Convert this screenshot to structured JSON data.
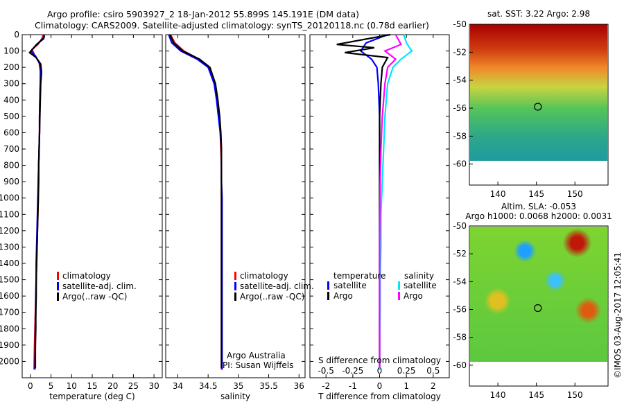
{
  "title_line1": "Argo profile: csiro 5903927_2 18-Jan-2012 55.899S 145.191E (DM data)",
  "title_line2": "Climatology: CARS2009. Satellite-adjusted climatology: synTS_20120118.nc (0.78d earlier)",
  "chart_data": [
    {
      "type": "line",
      "panel": "temperature",
      "xlabel": "temperature (deg C)",
      "xlim": [
        -2,
        32
      ],
      "xticks": [
        0,
        5,
        10,
        15,
        20,
        25,
        30
      ],
      "ylim": [
        2100,
        0
      ],
      "yticks": [
        0,
        100,
        200,
        300,
        400,
        500,
        600,
        700,
        800,
        900,
        1000,
        1100,
        1200,
        1300,
        1400,
        1500,
        1600,
        1700,
        1800,
        1900,
        2000
      ],
      "legend": [
        "climatology",
        "satellite-adj. clim.",
        "Argo(..raw -QC)"
      ],
      "series": [
        {
          "name": "climatology",
          "color": "#ff0000",
          "x": [
            3.1,
            2.9,
            1.8,
            0.4,
            0.9,
            2.1,
            2.4,
            2.4,
            2.3,
            2.2,
            2.2,
            2.1,
            2.0,
            1.9,
            1.9,
            1.8,
            1.7,
            1.6,
            1.5,
            1.4,
            1.3,
            1.2,
            1.1,
            1.0,
            0.9
          ],
          "y": [
            0,
            20,
            60,
            90,
            120,
            170,
            220,
            300,
            400,
            500,
            600,
            700,
            800,
            900,
            1000,
            1100,
            1200,
            1300,
            1400,
            1500,
            1600,
            1700,
            1800,
            1900,
            2050
          ]
        },
        {
          "name": "satellite-adj. clim.",
          "color": "#0000ff",
          "x": [
            3.3,
            3.2,
            1.6,
            0.1,
            1.2,
            2.3,
            2.5,
            2.4,
            2.3,
            2.2,
            2.2,
            2.1,
            2.0,
            1.9,
            1.8,
            1.7,
            1.6,
            1.5,
            1.4,
            1.4,
            1.3,
            1.3,
            1.2,
            1.2,
            1.1
          ],
          "y": [
            0,
            20,
            60,
            100,
            130,
            180,
            230,
            300,
            400,
            500,
            600,
            700,
            800,
            900,
            1000,
            1100,
            1200,
            1300,
            1400,
            1500,
            1600,
            1700,
            1800,
            1900,
            2050
          ]
        },
        {
          "name": "Argo(..raw -QC)",
          "color": "#000000",
          "x": [
            3.4,
            3.2,
            1.5,
            -0.2,
            1.4,
            2.5,
            2.7,
            2.5,
            2.4,
            2.3,
            2.2,
            2.1,
            2.0,
            2.0,
            1.9,
            1.8,
            1.7,
            1.6,
            1.5,
            1.4,
            1.4,
            1.3,
            1.3,
            1.2,
            1.2
          ],
          "y": [
            5,
            25,
            60,
            110,
            140,
            180,
            230,
            300,
            400,
            500,
            600,
            700,
            800,
            900,
            1000,
            1100,
            1200,
            1300,
            1400,
            1500,
            1600,
            1700,
            1800,
            1900,
            2040
          ]
        }
      ]
    },
    {
      "type": "line",
      "panel": "salinity",
      "xlabel": "salinity",
      "xlim": [
        33.8,
        36.1
      ],
      "xticks": [
        34,
        34.5,
        35,
        35.5,
        36
      ],
      "ylim": [
        2100,
        0
      ],
      "legend": [
        "climatology",
        "satellite-adj. clim.",
        "Argo(..raw -QC)"
      ],
      "annotation": [
        "Argo Australia",
        "PI: Susan Wijffels"
      ],
      "series": [
        {
          "name": "climatology",
          "color": "#ff0000",
          "x": [
            33.88,
            33.95,
            34.1,
            34.35,
            34.52,
            34.6,
            34.65,
            34.68,
            34.7,
            34.71,
            34.72,
            34.72,
            34.72,
            34.72,
            34.72,
            34.72,
            34.72,
            34.72,
            34.72,
            34.72,
            34.72
          ],
          "y": [
            0,
            50,
            100,
            150,
            200,
            300,
            400,
            500,
            600,
            700,
            800,
            900,
            1000,
            1100,
            1200,
            1300,
            1400,
            1500,
            1700,
            1900,
            2050
          ]
        },
        {
          "name": "satellite-adj. clim.",
          "color": "#0000ff",
          "x": [
            33.85,
            33.9,
            34.05,
            34.32,
            34.5,
            34.6,
            34.64,
            34.67,
            34.7,
            34.72,
            34.72,
            34.72,
            34.73,
            34.73,
            34.73,
            34.73,
            34.73,
            34.73,
            34.73,
            34.73,
            34.73
          ],
          "y": [
            0,
            50,
            100,
            150,
            200,
            300,
            400,
            500,
            600,
            700,
            800,
            900,
            1000,
            1100,
            1200,
            1300,
            1400,
            1500,
            1700,
            1900,
            2050
          ]
        },
        {
          "name": "Argo(..raw -QC)",
          "color": "#000000",
          "x": [
            33.87,
            33.93,
            34.08,
            34.36,
            34.53,
            34.62,
            34.66,
            34.69,
            34.71,
            34.72,
            34.72,
            34.72,
            34.72,
            34.72,
            34.72,
            34.72,
            34.72,
            34.72,
            34.72,
            34.72,
            34.72
          ],
          "y": [
            0,
            50,
            100,
            150,
            200,
            300,
            400,
            500,
            600,
            700,
            800,
            900,
            1000,
            1100,
            1200,
            1300,
            1400,
            1500,
            1700,
            1900,
            2040
          ]
        }
      ]
    },
    {
      "type": "line",
      "panel": "difference",
      "xlabel": "T difference from climatology",
      "xlabel_top": "S difference from climatology",
      "xlim": [
        -2.6,
        2.6
      ],
      "xticks": [
        -2,
        -1,
        0,
        1,
        2
      ],
      "xticks_top": [
        -0.5,
        -0.25,
        0,
        0.25,
        0.5
      ],
      "ylim": [
        2100,
        0
      ],
      "legend_titles": [
        "temperature",
        "salinity"
      ],
      "legend": [
        "satellite",
        "Argo",
        "satellite",
        "Argo"
      ],
      "series": [
        {
          "name": "temperature satellite",
          "color": "#0000ff",
          "x": [
            0.3,
            -0.5,
            -0.7,
            -0.3,
            -0.1,
            -0.05,
            0,
            0,
            0,
            0,
            0,
            0,
            0,
            0,
            0,
            0
          ],
          "y": [
            0,
            50,
            100,
            150,
            200,
            300,
            500,
            700,
            900,
            1100,
            1300,
            1500,
            1700,
            1900,
            2000,
            2050
          ]
        },
        {
          "name": "temperature Argo",
          "color": "#000000",
          "x": [
            0.4,
            -1.6,
            -0.2,
            -1.3,
            0.3,
            0.1,
            0.05,
            0,
            0,
            0,
            0,
            0,
            0,
            0,
            0,
            0
          ],
          "y": [
            0,
            60,
            80,
            110,
            140,
            200,
            300,
            500,
            700,
            900,
            1100,
            1300,
            1500,
            1700,
            1900,
            2040
          ]
        },
        {
          "name": "salinity satellite",
          "color": "#00e5ff",
          "x": [
            0.9,
            1.0,
            1.2,
            0.8,
            0.5,
            0.3,
            0.2,
            0.15,
            0.1,
            0.05,
            0.05,
            0.02,
            0.02,
            0,
            0,
            0
          ],
          "y": [
            0,
            50,
            100,
            150,
            200,
            300,
            500,
            700,
            900,
            1100,
            1300,
            1500,
            1700,
            1900,
            2000,
            2050
          ]
        },
        {
          "name": "salinity Argo",
          "color": "#ff00ff",
          "x": [
            0.6,
            0.8,
            0.2,
            0.6,
            0.3,
            0.2,
            0.1,
            0.05,
            0.02,
            0.01,
            0,
            0,
            0,
            0,
            0,
            0
          ],
          "y": [
            0,
            60,
            100,
            150,
            200,
            300,
            500,
            700,
            900,
            1100,
            1300,
            1500,
            1700,
            1900,
            2000,
            2040
          ]
        }
      ]
    },
    {
      "type": "heatmap",
      "panel": "sat-sst-map",
      "title": "sat. SST: 3.22  Argo: 2.98",
      "xticks": [
        140,
        145,
        150
      ],
      "yticks": [
        -50,
        -52,
        -54,
        -56,
        -58,
        -60
      ],
      "xlim": [
        136.3,
        154.3
      ],
      "ylim": [
        -61.5,
        -50
      ],
      "marker": {
        "lon": 145.191,
        "lat": -55.899
      }
    },
    {
      "type": "heatmap",
      "panel": "altim-sla-map",
      "title": [
        "Altim. SLA: -0.053",
        "Argo h1000: 0.0068 h2000: 0.0031"
      ],
      "xticks": [
        140,
        145,
        150
      ],
      "yticks": [
        -50,
        -52,
        -54,
        -56,
        -58,
        -60
      ],
      "xlim": [
        136.3,
        154.3
      ],
      "ylim": [
        -61.5,
        -50
      ],
      "marker": {
        "lon": 145.191,
        "lat": -55.899
      }
    }
  ],
  "watermark": "©IMOS 03-Aug-2017 12:05:41"
}
